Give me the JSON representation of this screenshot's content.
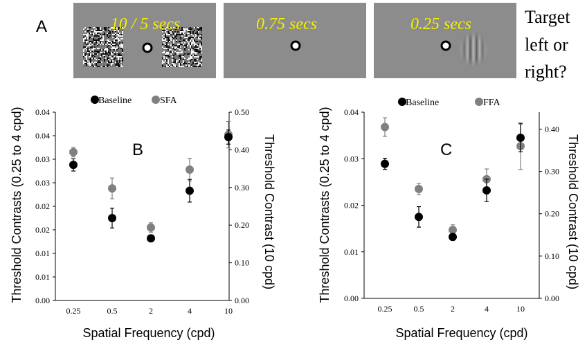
{
  "panel_a": {
    "label": "A",
    "frames": [
      {
        "time_label": "10 / 5 secs",
        "content": "noise-adaptors"
      },
      {
        "time_label": "0.75 secs",
        "content": "blank"
      },
      {
        "time_label": "0.25 secs",
        "content": "grating-target"
      }
    ],
    "question_lines": [
      "Target",
      "left or",
      "right?"
    ]
  },
  "colors": {
    "baseline": "#000000",
    "adapted": "#808080",
    "stim_bg": "#8c8c8c",
    "stim_text": "#f4f000"
  },
  "chart_data": [
    {
      "type": "scatter",
      "panel_label": "B",
      "categories": [
        "0.25",
        "0.5",
        "2",
        "4",
        "10"
      ],
      "xlabel": "Spatial Frequency (cpd)",
      "ylabel": "Threshold Contrasts (0.25 to 4 cpd)",
      "y2label": "Threshold Contrast (10 cpd)",
      "y_ticks": [
        "0.00",
        "0.01",
        "0.01",
        "0.02",
        "0.02",
        "0.03",
        "0.03",
        "0.04",
        "0.04"
      ],
      "ylim": [
        0,
        0.04
      ],
      "y2_ticks": [
        "0.00",
        "0.10",
        "0.20",
        "0.30",
        "0.40",
        "0.50"
      ],
      "y2lim": [
        0,
        0.5
      ],
      "legend": [
        "Baseline",
        "SFA"
      ],
      "legend_position": "top",
      "series": [
        {
          "name": "Baseline",
          "color": "#000000",
          "values": [
            0.0288,
            0.0175,
            0.0132,
            0.0233,
            0.0347
          ],
          "errors": [
            0.0013,
            0.0021,
            0.0007,
            0.0024,
            0.0015
          ]
        },
        {
          "name": "SFA",
          "color": "#808080",
          "values": [
            0.0315,
            0.0238,
            0.0155,
            0.0278,
            0.0352
          ],
          "errors": [
            0.001,
            0.0022,
            0.001,
            0.0024,
            0.0028
          ]
        }
      ]
    },
    {
      "type": "scatter",
      "panel_label": "C",
      "categories": [
        "0.25",
        "0.5",
        "2",
        "4",
        "10"
      ],
      "xlabel": "Spatial Frequency (cpd)",
      "ylabel": "Threshold Contrasts (0.25 to 4 cpd)",
      "y2label": "Threshold Contrast (10 cpd)",
      "y_ticks": [
        "0.00",
        "0.01",
        "0.02",
        "0.03",
        "0.04"
      ],
      "ylim": [
        0,
        0.04
      ],
      "y2_ticks": [
        "0.00",
        "0.10",
        "0.20",
        "0.30",
        "0.40"
      ],
      "y2lim": [
        0,
        0.44
      ],
      "legend": [
        "Baseline",
        "FFA"
      ],
      "legend_position": "top",
      "series": [
        {
          "name": "Baseline",
          "color": "#000000",
          "values": [
            0.0289,
            0.0175,
            0.0132,
            0.0232,
            0.0345
          ],
          "errors": [
            0.0012,
            0.0022,
            0.0007,
            0.0024,
            0.003
          ]
        },
        {
          "name": "FFA",
          "color": "#808080",
          "values": [
            0.0368,
            0.0235,
            0.0147,
            0.0256,
            0.0327
          ],
          "errors": [
            0.002,
            0.0012,
            0.0011,
            0.0022,
            0.005
          ]
        }
      ]
    }
  ]
}
